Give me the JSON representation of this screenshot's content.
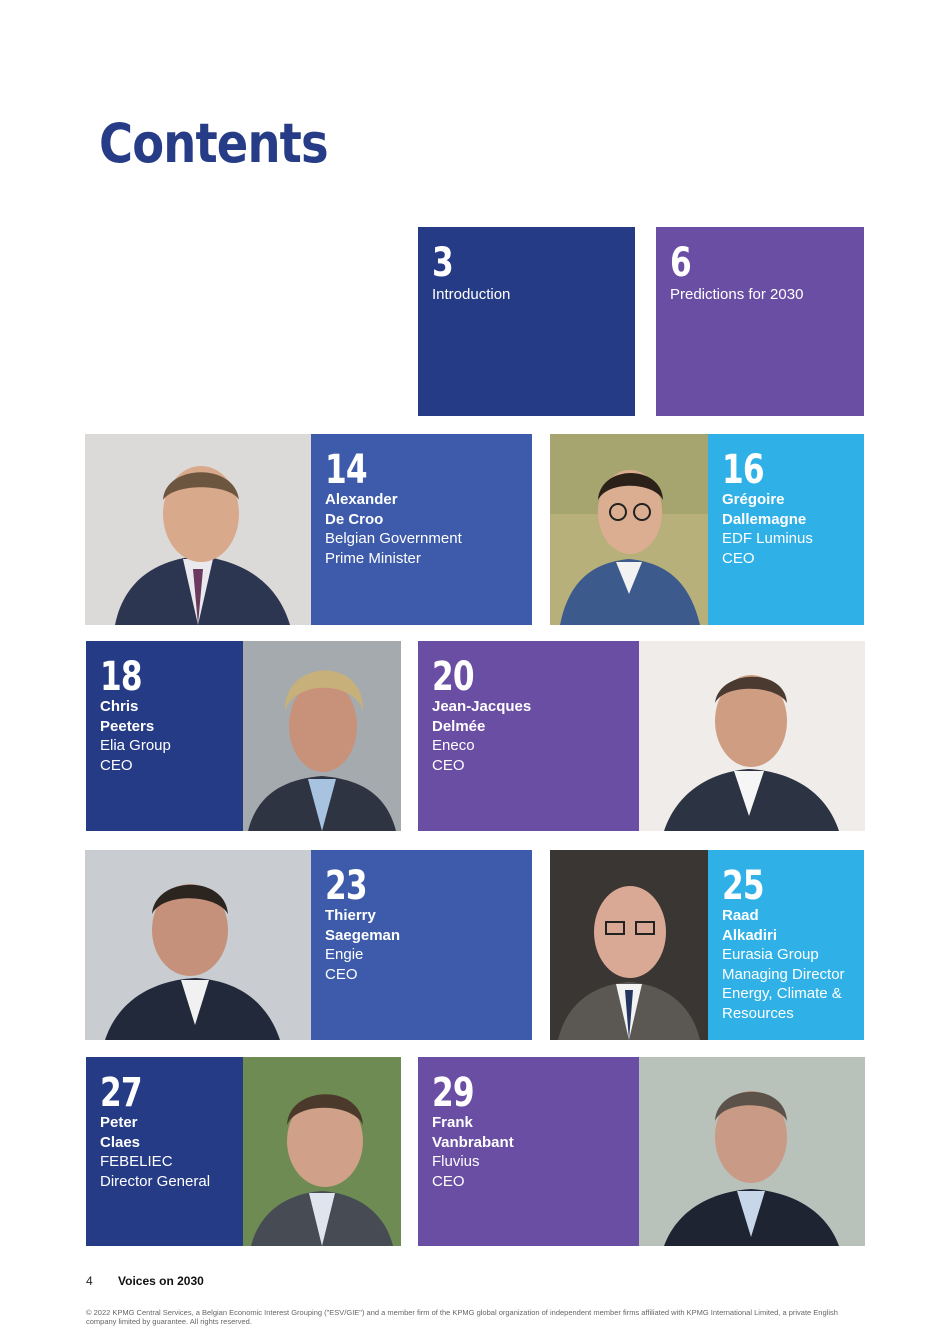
{
  "page": {
    "title": "Contents",
    "footer_page_number": "4",
    "footer_title": "Voices on 2030",
    "copyright": "© 2022 KPMG Central Services, a Belgian Economic Interest Grouping (\"ESV/GIE\") and a member firm of the KPMG global organization of independent member firms affiliated with KPMG International Limited, a private English company limited by guarantee. All rights reserved."
  },
  "colors": {
    "navy": "#263b86",
    "purple": "#6a4ea4",
    "blue": "#3e5bab",
    "cyan": "#2fb1e8"
  },
  "sections": [
    {
      "page": "3",
      "label": "Introduction"
    },
    {
      "page": "6",
      "label": "Predictions for 2030"
    }
  ],
  "entries": [
    {
      "page": "14",
      "name1": "Alexander",
      "name2": "De Croo",
      "role1": "Belgian Government",
      "role2": "Prime Minister",
      "photo": "portrait-alexander-de-croo"
    },
    {
      "page": "16",
      "name1": "Grégoire",
      "name2": "Dallemagne",
      "role1": "EDF Luminus",
      "role2": "CEO",
      "photo": "portrait-gregoire-dallemagne"
    },
    {
      "page": "18",
      "name1": "Chris",
      "name2": "Peeters",
      "role1": "Elia Group",
      "role2": "CEO",
      "photo": "portrait-chris-peeters"
    },
    {
      "page": "20",
      "name1": "Jean-Jacques",
      "name2": "Delmée",
      "role1": "Eneco",
      "role2": "CEO",
      "photo": "portrait-jean-jacques-delmee"
    },
    {
      "page": "23",
      "name1": "Thierry",
      "name2": "Saegeman",
      "role1": "Engie",
      "role2": "CEO",
      "photo": "portrait-thierry-saegeman"
    },
    {
      "page": "25",
      "name1": "Raad",
      "name2": "Alkadiri",
      "role1": "Eurasia Group",
      "role2": "Managing Director",
      "role3": "Energy, Climate &",
      "role4": "Resources",
      "photo": "portrait-raad-alkadiri"
    },
    {
      "page": "27",
      "name1": "Peter",
      "name2": "Claes",
      "role1": "FEBELIEC",
      "role2": "Director General",
      "photo": "portrait-peter-claes"
    },
    {
      "page": "29",
      "name1": "Frank",
      "name2": "Vanbrabant",
      "role1": "Fluvius",
      "role2": "CEO",
      "photo": "portrait-frank-vanbrabant"
    }
  ]
}
